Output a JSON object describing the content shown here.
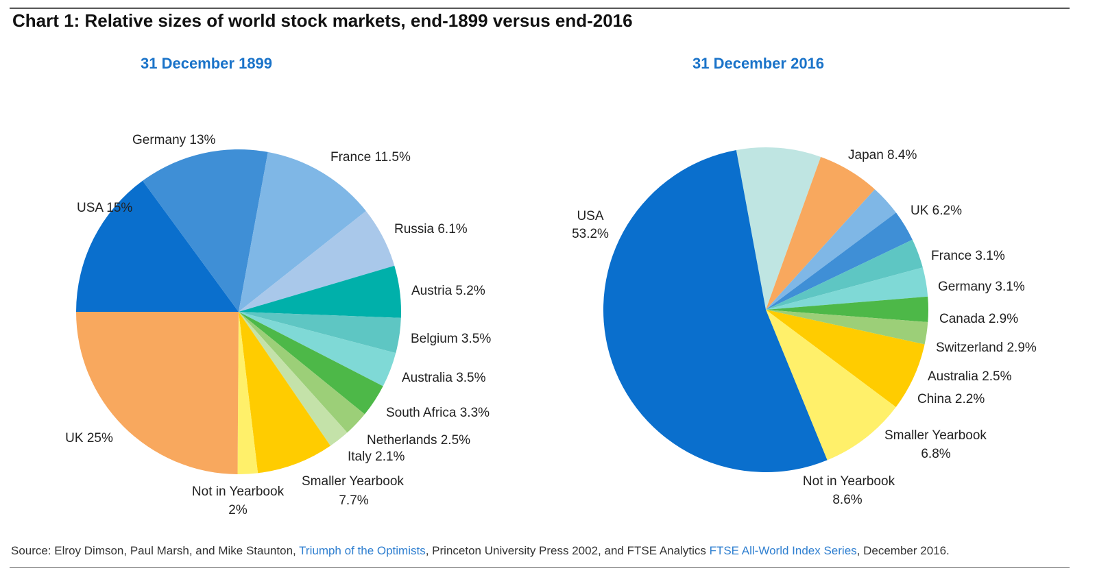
{
  "title": "Chart 1: Relative sizes of world stock markets, end-1899 versus end-2016",
  "source": {
    "prefix": "Source: Elroy Dimson, Paul Marsh, and Mike Staunton, ",
    "link1": "Triumph of the Optimists",
    "middle": ", Princeton University Press 2002, and FTSE Analytics ",
    "link2": "FTSE All-World Index Series",
    "suffix": ", December 2016."
  },
  "colors": {
    "subtitle": "#1a73c9",
    "link": "#2f7fd0"
  },
  "chart_data": [
    {
      "type": "pie",
      "title": "31 December 1899",
      "slices": [
        {
          "label": "USA 15%",
          "value": 15,
          "color": "#0a6fcd"
        },
        {
          "label": "Germany 13%",
          "value": 13,
          "color": "#3f8fd6"
        },
        {
          "label": "France 11.5%",
          "value": 11.5,
          "color": "#7fb7e6"
        },
        {
          "label": "Russia 6.1%",
          "value": 6.1,
          "color": "#a9c8ea"
        },
        {
          "label": "Austria 5.2%",
          "value": 5.2,
          "color": "#00b0aa"
        },
        {
          "label": "Belgium 3.5%",
          "value": 3.5,
          "color": "#5ec6c3"
        },
        {
          "label": "Australia 3.5%",
          "value": 3.5,
          "color": "#7fd9d6"
        },
        {
          "label": "South Africa 3.3%",
          "value": 3.3,
          "color": "#4db848"
        },
        {
          "label": "Netherlands 2.5%",
          "value": 2.5,
          "color": "#9ccf78"
        },
        {
          "label": "Italy 2.1%",
          "value": 2.1,
          "color": "#c4e2a9"
        },
        {
          "label": "Smaller Yearbook 7.7%",
          "value": 7.7,
          "color": "#ffcc00"
        },
        {
          "label": "Not in Yearbook 2%",
          "value": 2,
          "color": "#fff06a"
        },
        {
          "label": "UK 25%",
          "value": 25,
          "color": "#f8a85e"
        }
      ]
    },
    {
      "type": "pie",
      "title": "31 December 2016",
      "slices": [
        {
          "label": "Japan 8.4%",
          "value": 8.4,
          "color": "#bfe5e2"
        },
        {
          "label": "UK 6.2%",
          "value": 6.2,
          "color": "#f8a85e"
        },
        {
          "label": "France 3.1%",
          "value": 3.1,
          "color": "#7fb7e6"
        },
        {
          "label": "Germany 3.1%",
          "value": 3.1,
          "color": "#3f8fd6"
        },
        {
          "label": "Canada 2.9%",
          "value": 2.9,
          "color": "#5ec6c3"
        },
        {
          "label": "Switzerland 2.9%",
          "value": 2.9,
          "color": "#7fd9d6"
        },
        {
          "label": "Australia 2.5%",
          "value": 2.5,
          "color": "#4db848"
        },
        {
          "label": "China 2.2%",
          "value": 2.2,
          "color": "#9ccf78"
        },
        {
          "label": "Smaller Yearbook 6.8%",
          "value": 6.8,
          "color": "#ffcc00"
        },
        {
          "label": "Not in Yearbook 8.6%",
          "value": 8.6,
          "color": "#fff06a"
        },
        {
          "label": "USA 53.2%",
          "value": 53.2,
          "color": "#0a6fcd"
        }
      ]
    }
  ]
}
